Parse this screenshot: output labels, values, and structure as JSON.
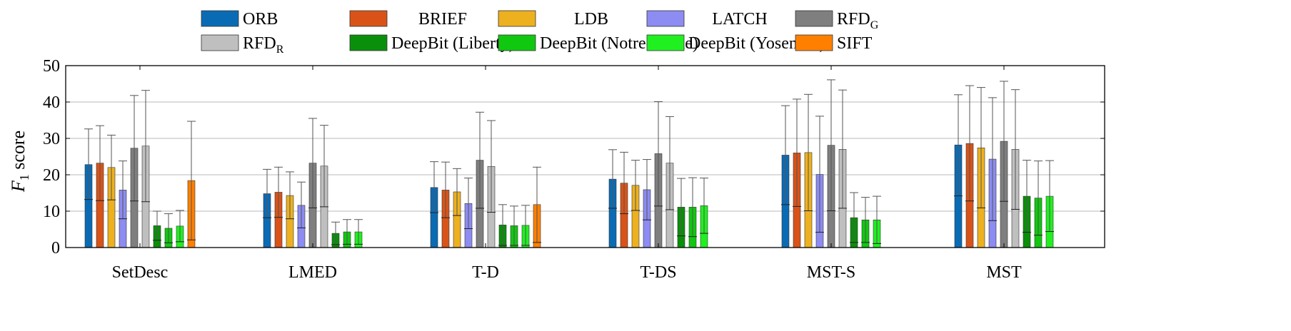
{
  "chart_data": {
    "type": "bar",
    "title": "",
    "xlabel": "",
    "ylabel_main": "F",
    "ylabel_sub": "1",
    "ylabel_rest": " score",
    "ylim": [
      0,
      50
    ],
    "yticks": [
      0,
      10,
      20,
      30,
      40,
      50
    ],
    "grid": true,
    "legend_position": "top",
    "categories": [
      "SetDesc",
      "LMED",
      "T-D",
      "T-DS",
      "MST-S",
      "MST"
    ],
    "series": [
      {
        "name": "ORB",
        "name_sub": "",
        "color": "#0a6bb5",
        "values": [
          22.8,
          14.8,
          16.5,
          18.8,
          25.4,
          28.2
        ],
        "err_low": [
          13.2,
          8.2,
          9.6,
          10.8,
          11.8,
          14.2
        ],
        "err_high": [
          32.6,
          21.5,
          23.6,
          26.9,
          39.0,
          42.0
        ]
      },
      {
        "name": "BRIEF",
        "name_sub": "",
        "color": "#d95319",
        "values": [
          23.2,
          15.2,
          15.8,
          17.7,
          26.0,
          28.6
        ],
        "err_low": [
          12.9,
          8.3,
          8.2,
          9.3,
          11.3,
          12.8
        ],
        "err_high": [
          33.5,
          22.1,
          23.5,
          26.2,
          40.8,
          44.5
        ]
      },
      {
        "name": "LDB",
        "name_sub": "",
        "color": "#edb120",
        "values": [
          22.0,
          14.3,
          15.3,
          17.1,
          26.1,
          27.4
        ],
        "err_low": [
          13.1,
          7.9,
          8.8,
          10.2,
          10.1,
          10.9
        ],
        "err_high": [
          30.9,
          20.8,
          21.7,
          24.0,
          42.1,
          44.0
        ]
      },
      {
        "name": "LATCH",
        "name_sub": "",
        "color": "#8c8cf2",
        "values": [
          15.8,
          11.6,
          12.1,
          15.9,
          20.1,
          24.3
        ],
        "err_low": [
          7.9,
          5.4,
          5.2,
          7.6,
          4.2,
          7.4
        ],
        "err_high": [
          23.8,
          18.0,
          19.1,
          24.2,
          36.1,
          41.2
        ]
      },
      {
        "name": "RFD",
        "name_sub": "G",
        "color": "#7f7f7f",
        "values": [
          27.3,
          23.2,
          24.0,
          25.8,
          28.1,
          29.2
        ],
        "err_low": [
          12.8,
          10.9,
          10.8,
          11.4,
          10.1,
          12.7
        ],
        "err_high": [
          41.8,
          35.5,
          37.2,
          40.1,
          46.1,
          45.7
        ]
      },
      {
        "name": "RFD",
        "name_sub": "R",
        "color": "#bfbfbf",
        "values": [
          27.9,
          22.4,
          22.3,
          23.2,
          27.0,
          27.0
        ],
        "err_low": [
          12.6,
          11.2,
          9.7,
          10.4,
          10.8,
          10.5
        ],
        "err_high": [
          43.2,
          33.6,
          34.9,
          36.0,
          43.3,
          43.4
        ]
      },
      {
        "name": "DeepBit (Liberty)",
        "name_sub": "",
        "color": "#0a8f0a",
        "values": [
          6.0,
          3.9,
          6.2,
          11.1,
          8.2,
          14.1
        ],
        "err_low": [
          2.0,
          0.8,
          0.6,
          3.2,
          1.4,
          4.2
        ],
        "err_high": [
          10.0,
          7.0,
          11.8,
          19.0,
          15.1,
          24.0
        ]
      },
      {
        "name": "DeepBit (Notre-Dame)",
        "name_sub": "",
        "color": "#10c810",
        "values": [
          5.3,
          4.3,
          6.0,
          11.1,
          7.6,
          13.6
        ],
        "err_low": [
          1.3,
          0.9,
          0.6,
          3.0,
          1.4,
          3.4
        ],
        "err_high": [
          9.3,
          7.7,
          11.4,
          19.2,
          13.8,
          23.8
        ]
      },
      {
        "name": "DeepBit (Yosemite)",
        "name_sub": "",
        "color": "#20f020",
        "values": [
          5.9,
          4.3,
          6.1,
          11.5,
          7.6,
          14.1
        ],
        "err_low": [
          1.6,
          0.9,
          0.6,
          3.9,
          1.1,
          4.4
        ],
        "err_high": [
          10.2,
          7.7,
          11.6,
          19.1,
          14.1,
          23.9
        ]
      },
      {
        "name": "SIFT",
        "name_sub": "",
        "color": "#ff8000",
        "values": [
          18.4,
          null,
          11.8,
          null,
          null,
          null
        ],
        "err_low": [
          2.1,
          null,
          1.4,
          null,
          null,
          null
        ],
        "err_high": [
          34.7,
          null,
          22.1,
          null,
          null,
          null
        ]
      }
    ]
  }
}
